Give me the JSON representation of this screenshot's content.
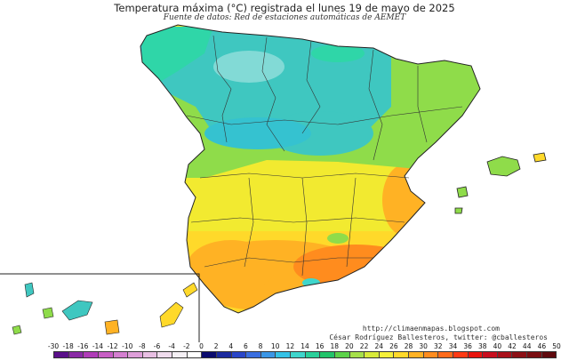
{
  "header": {
    "title": "Temperatura máxima (°C) registrada el lunes 19 de mayo de 2025",
    "subtitle": "Fuente de datos: Red de estaciones automáticas de AEMET"
  },
  "credits": {
    "url": "http://climaenmapas.blogspot.com",
    "author": "César Rodríguez Ballesteros, twitter: @cballesteros"
  },
  "legend": {
    "labels": [
      "-30",
      "-18",
      "-16",
      "-14",
      "-12",
      "-10",
      "-8",
      "-6",
      "-4",
      "-2",
      "0",
      "2",
      "4",
      "6",
      "8",
      "10",
      "12",
      "14",
      "16",
      "18",
      "20",
      "22",
      "24",
      "26",
      "28",
      "30",
      "32",
      "34",
      "36",
      "38",
      "40",
      "42",
      "44",
      "46",
      "50"
    ],
    "colors": [
      "#5a0f8a",
      "#8a2aa6",
      "#b03cb8",
      "#c85fc5",
      "#d47fd0",
      "#de9fd9",
      "#e8bfe3",
      "#f0dcee",
      "#f5f0f5",
      "#ffffff",
      "#0b0b6e",
      "#1b2a9e",
      "#2a46c8",
      "#3a6ee0",
      "#3b96e6",
      "#35c2e6",
      "#3fd6cc",
      "#2ad09a",
      "#22c46a",
      "#5cd24a",
      "#a6e04a",
      "#d8ea3a",
      "#f5f03a",
      "#ffd92a",
      "#ffb224",
      "#ff8c1e",
      "#ff6a1a",
      "#ff3a14",
      "#e8140e",
      "#c80e1e",
      "#a8101a",
      "#8c1016",
      "#7a0e12",
      "#600a0e"
    ]
  },
  "map": {
    "region": "Spain",
    "colors": {
      "sea": "#ffffff",
      "cool_north": "#3fc7c0",
      "cool_coast": "#2fd6a8",
      "mild": "#8fdc4a",
      "warm": "#f2ea30",
      "hot": "#ffb224",
      "hotter": "#ff8c1e",
      "border": "#222222"
    }
  }
}
